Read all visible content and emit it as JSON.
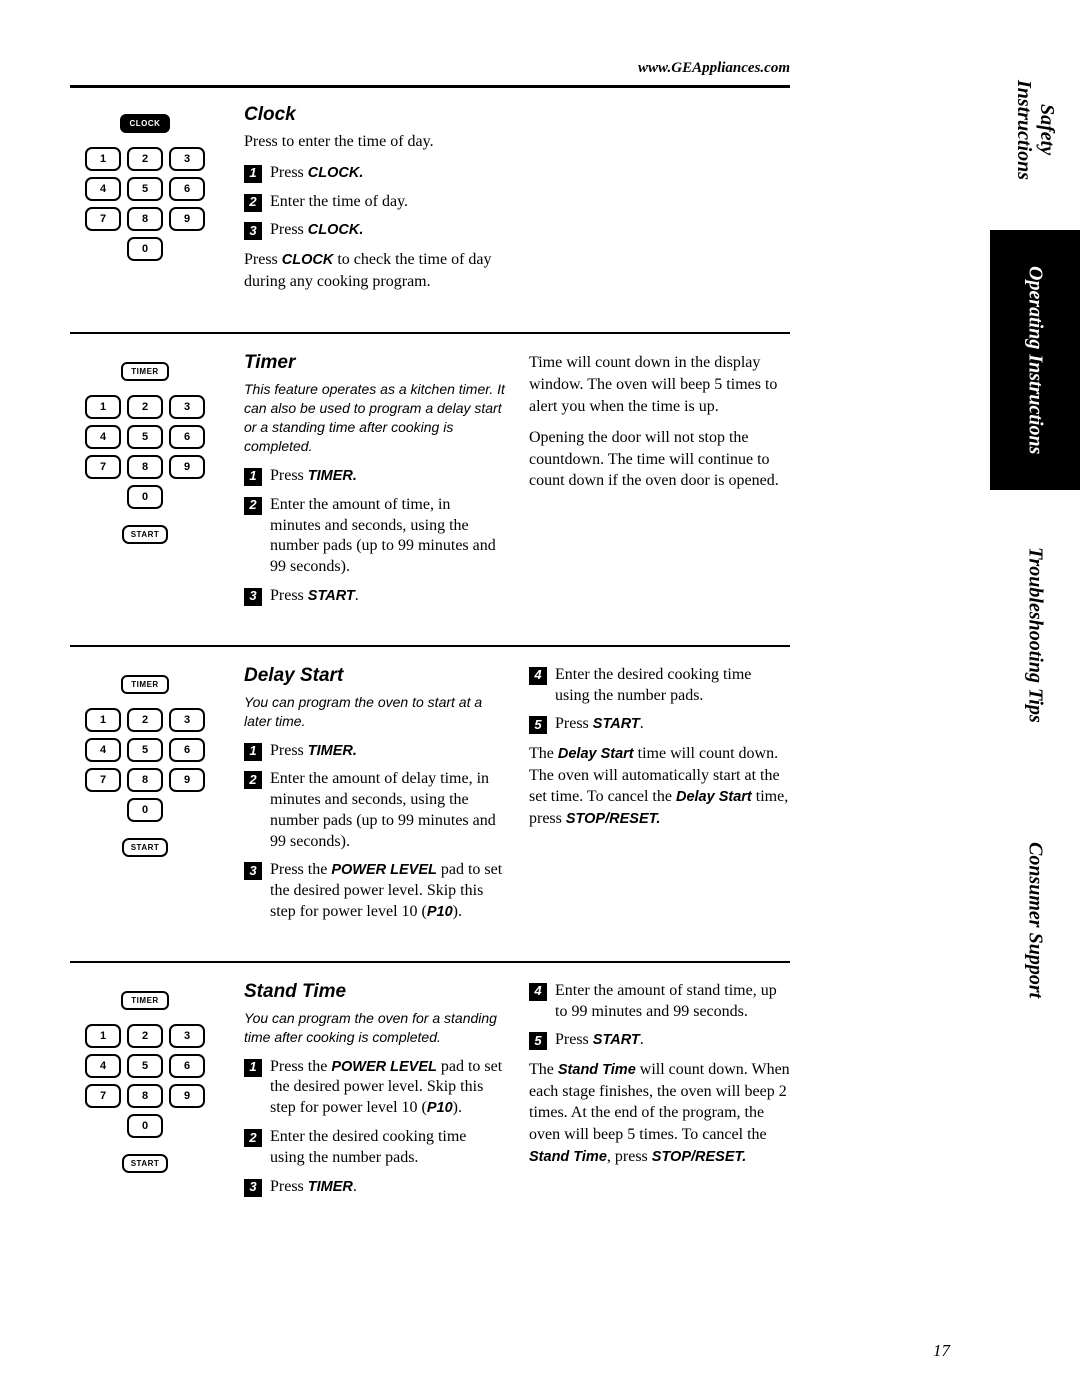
{
  "url": "www.GEAppliances.com",
  "page_number": "17",
  "tabs": [
    {
      "label": "Safety Instructions",
      "style": "white"
    },
    {
      "label": "Operating Instructions",
      "style": "black"
    },
    {
      "label": "Troubleshooting Tips",
      "style": "white"
    },
    {
      "label": "Consumer Support",
      "style": "white"
    }
  ],
  "keypad_numbers": [
    "1",
    "2",
    "3",
    "4",
    "5",
    "6",
    "7",
    "8",
    "9",
    "0"
  ],
  "btn_clock": "CLOCK",
  "btn_timer": "TIMER",
  "btn_start": "START",
  "clock": {
    "title": "Clock",
    "lead": "Press to enter the time of day.",
    "s1": "Press ",
    "s1b": "CLOCK.",
    "s2": "Enter the time of day.",
    "s3": "Press ",
    "s3b": "CLOCK.",
    "note_a": "Press ",
    "note_b": "CLOCK",
    "note_c": " to check the time of day during any cooking program."
  },
  "timer": {
    "title": "Timer",
    "lead": "This feature operates as a kitchen timer. It can also be used to program a delay start or a standing time after cooking is completed.",
    "s1a": "Press ",
    "s1b": "TIMER.",
    "s2": "Enter the amount of time, in minutes and seconds, using the number pads (up to 99 minutes and 99 seconds).",
    "s3a": "Press ",
    "s3b": "START",
    "s3c": ".",
    "r1": "Time will count down in the display window. The oven will beep 5 times to alert you when the time is up.",
    "r2": "Opening the door will not stop the countdown. The time will continue to count down if the oven door is opened."
  },
  "delay": {
    "title": "Delay Start",
    "lead": "You can program the oven to start at a later time.",
    "s1a": "Press ",
    "s1b": "TIMER.",
    "s2": "Enter the amount of delay time, in minutes and seconds, using the number pads (up to 99 minutes and 99 seconds).",
    "s3a": "Press the ",
    "s3b": "POWER LEVEL",
    "s3c": " pad to set the desired power level. Skip this step for power level 10 (",
    "s3d": "P10",
    "s3e": ").",
    "s4": "Enter the desired cooking time using the number pads.",
    "s5a": "Press ",
    "s5b": "START",
    "s5c": ".",
    "r1a": "The ",
    "r1b": "Delay Start",
    "r1c": " time will count down. The oven will automatically start at the set time. To cancel the ",
    "r1d": "Delay Start",
    "r1e": " time, press ",
    "r1f": "STOP/RESET."
  },
  "stand": {
    "title": "Stand Time",
    "lead": "You can program the oven for a standing time after cooking is completed.",
    "s1a": "Press the ",
    "s1b": "POWER LEVEL",
    "s1c": " pad to set the desired power level. Skip this step for power level 10 (",
    "s1d": "P10",
    "s1e": ").",
    "s2": "Enter the desired cooking time using the number pads.",
    "s3a": "Press ",
    "s3b": "TIMER",
    "s3c": ".",
    "s4": "Enter the amount of stand time, up to 99 minutes and 99 seconds.",
    "s5a": "Press ",
    "s5b": "START",
    "s5c": ".",
    "r1a": "The ",
    "r1b": "Stand Time",
    "r1c": " will count down. When each stage finishes, the oven will beep 2 times. At the end of the program, the oven will beep 5 times. To cancel the ",
    "r1d": "Stand Time",
    "r1e": ", press ",
    "r1f": "STOP/RESET."
  }
}
